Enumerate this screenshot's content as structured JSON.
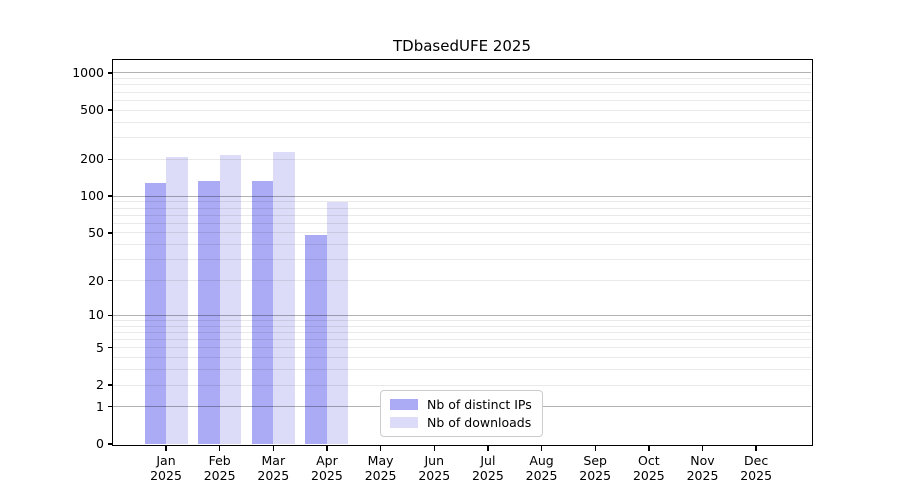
{
  "figure": {
    "title": "TDbasedUFE 2025",
    "background_color": "#ffffff"
  },
  "chart_data": {
    "type": "bar",
    "title": "TDbasedUFE 2025",
    "xlabel": "",
    "ylabel": "",
    "y_scale": "log1p",
    "ylim": [
      0,
      1275
    ],
    "grid": "on",
    "legend_position": "lower center",
    "categories": [
      "Jan 2025",
      "Feb 2025",
      "Mar 2025",
      "Apr 2025",
      "May 2025",
      "Jun 2025",
      "Jul 2025",
      "Aug 2025",
      "Sep 2025",
      "Oct 2025",
      "Nov 2025",
      "Dec 2025"
    ],
    "month_line1": [
      "Jan",
      "Feb",
      "Mar",
      "Apr",
      "May",
      "Jun",
      "Jul",
      "Aug",
      "Sep",
      "Oct",
      "Nov",
      "Dec"
    ],
    "month_line2": [
      "2025",
      "2025",
      "2025",
      "2025",
      "2025",
      "2025",
      "2025",
      "2025",
      "2025",
      "2025",
      "2025",
      "2025"
    ],
    "series": [
      {
        "name": "Nb of distinct IPs",
        "color": "#aaaaf5",
        "values": [
          128,
          133,
          134,
          48,
          null,
          null,
          null,
          null,
          null,
          null,
          null,
          null
        ]
      },
      {
        "name": "Nb of downloads",
        "color": "#dcdcf8",
        "values": [
          210,
          218,
          227,
          90,
          null,
          null,
          null,
          null,
          null,
          null,
          null,
          null
        ]
      }
    ],
    "y_ticks": [
      0,
      1,
      2,
      5,
      10,
      20,
      50,
      100,
      200,
      500,
      1000
    ],
    "grid_major_values": [
      1,
      10,
      100,
      1000
    ],
    "grid_minor_values": [
      2,
      3,
      4,
      5,
      6,
      7,
      8,
      9,
      20,
      30,
      40,
      50,
      60,
      70,
      80,
      90,
      200,
      300,
      400,
      500,
      600,
      700,
      800,
      900
    ]
  }
}
